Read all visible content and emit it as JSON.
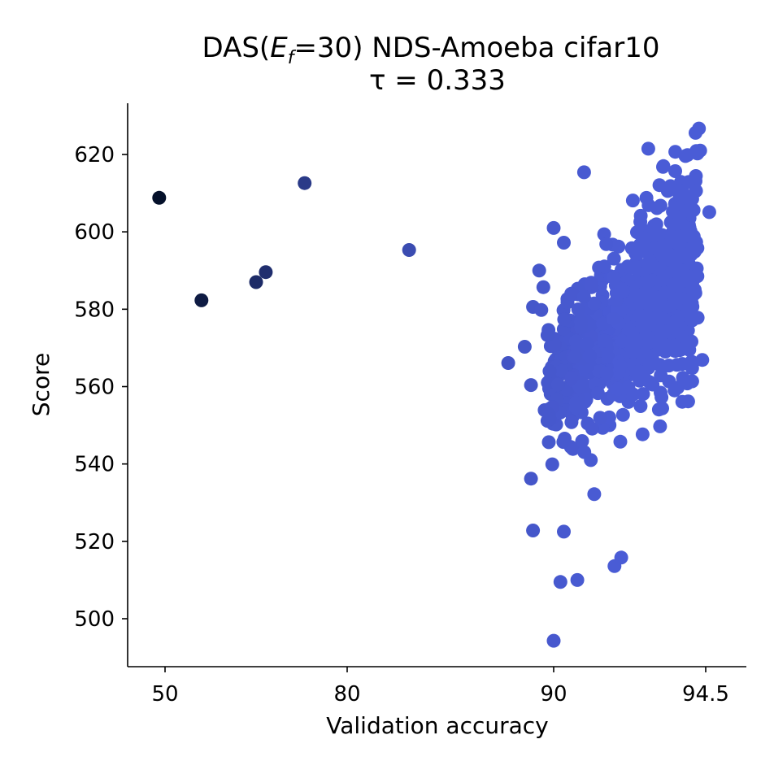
{
  "chart_data": {
    "type": "scatter",
    "title": "DAS(E_f=30) NDS-Amoeba cifar10",
    "title_parts": {
      "prefix": "DAS(",
      "E": "E",
      "sub": "f",
      "suffix": "=30) NDS-Amoeba cifar10"
    },
    "subtitle": "τ = 0.333",
    "xlabel": "Validation accuracy",
    "ylabel": "Score",
    "ylim": [
      488,
      634
    ],
    "x_scale": "nonlinear (power-transformed validation accuracy)",
    "xticks": [
      {
        "value": 50,
        "label": "50"
      },
      {
        "value": 80,
        "label": "80"
      },
      {
        "value": 90,
        "label": "90"
      },
      {
        "value": 94.5,
        "label": "94.5"
      }
    ],
    "yticks": [
      {
        "value": 500,
        "label": "500"
      },
      {
        "value": 520,
        "label": "520"
      },
      {
        "value": 540,
        "label": "540"
      },
      {
        "value": 560,
        "label": "560"
      },
      {
        "value": 580,
        "label": "580"
      },
      {
        "value": 600,
        "label": "600"
      },
      {
        "value": 620,
        "label": "620"
      }
    ],
    "colors": {
      "low_accuracy": "#04102a",
      "high_accuracy": "#4a5cd6"
    },
    "outliers": [
      {
        "x": 49.4,
        "y": 608.8
      },
      {
        "x": 56.0,
        "y": 582.3
      },
      {
        "x": 65.0,
        "y": 587.0
      },
      {
        "x": 66.6,
        "y": 589.6
      },
      {
        "x": 73.0,
        "y": 612.6
      },
      {
        "x": 83.0,
        "y": 595.3
      },
      {
        "x": 87.8,
        "y": 566.1
      }
    ],
    "cluster_points": [
      {
        "x": 88.6,
        "y": 570.3
      },
      {
        "x": 88.9,
        "y": 560.4
      },
      {
        "x": 88.9,
        "y": 536.2
      },
      {
        "x": 89.0,
        "y": 522.8
      },
      {
        "x": 89.0,
        "y": 580.6
      },
      {
        "x": 89.3,
        "y": 590.0
      },
      {
        "x": 89.5,
        "y": 585.7
      },
      {
        "x": 89.4,
        "y": 579.8
      },
      {
        "x": 89.7,
        "y": 573.3
      },
      {
        "x": 89.8,
        "y": 564.0
      },
      {
        "x": 89.8,
        "y": 551.6
      },
      {
        "x": 90.0,
        "y": 601.0
      },
      {
        "x": 90.0,
        "y": 494.3
      },
      {
        "x": 90.2,
        "y": 509.5
      },
      {
        "x": 90.3,
        "y": 597.2
      },
      {
        "x": 90.3,
        "y": 522.5
      },
      {
        "x": 90.7,
        "y": 510.0
      },
      {
        "x": 90.9,
        "y": 615.4
      },
      {
        "x": 91.1,
        "y": 541.0
      },
      {
        "x": 91.2,
        "y": 532.2
      },
      {
        "x": 92.0,
        "y": 515.8
      },
      {
        "x": 91.8,
        "y": 513.6
      },
      {
        "x": 92.8,
        "y": 621.5
      },
      {
        "x": 93.6,
        "y": 620.7
      },
      {
        "x": 94.2,
        "y": 625.6
      },
      {
        "x": 94.3,
        "y": 626.7
      },
      {
        "x": 94.6,
        "y": 605.1
      },
      {
        "x": 94.4,
        "y": 566.9
      }
    ],
    "cluster_density": {
      "count": 900,
      "x_range": [
        89.3,
        94.6
      ],
      "y_range": [
        512,
        622
      ],
      "trend": "score increases with accuracy; densest near x=93.2, y=578"
    }
  }
}
